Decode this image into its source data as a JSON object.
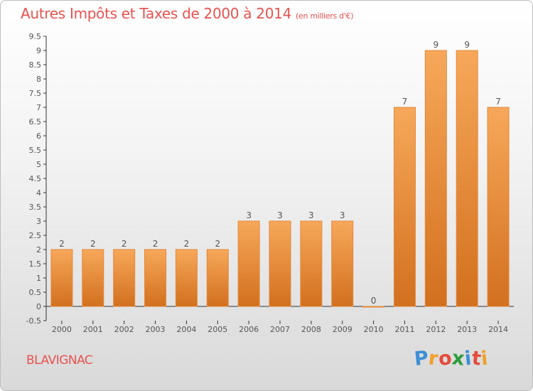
{
  "header": {
    "title": "Autres Impôts et Taxes de 2000 à 2014",
    "unit": "(en milliers d'€)"
  },
  "footer": {
    "commune": "BLAVIGNAC",
    "logo_letters": [
      "P",
      "r",
      "o",
      "x",
      "i",
      "t",
      "i"
    ],
    "logo_colors": [
      "#3d8fd6",
      "#f0a12a",
      "#e54b3c",
      "#2d9c3c",
      "#3d8fd6",
      "#e54b3c",
      "#f0a12a"
    ]
  },
  "chart_data": {
    "type": "bar",
    "categories": [
      "2000",
      "2001",
      "2002",
      "2003",
      "2004",
      "2005",
      "2006",
      "2007",
      "2008",
      "2009",
      "2010",
      "2011",
      "2012",
      "2013",
      "2014"
    ],
    "values": [
      2,
      2,
      2,
      2,
      2,
      2,
      3,
      3,
      3,
      3,
      0,
      7,
      9,
      9,
      7
    ],
    "data_labels": [
      "2",
      "2",
      "2",
      "2",
      "2",
      "2",
      "3",
      "3",
      "3",
      "3",
      "0",
      "7",
      "9",
      "9",
      "7"
    ],
    "ylim": [
      -0.5,
      9.5
    ],
    "yticks": [
      "-0.5",
      "0",
      "0.5",
      "1",
      "1.5",
      "2",
      "2.5",
      "3",
      "3.5",
      "4",
      "4.5",
      "5",
      "5.5",
      "6",
      "6.5",
      "7",
      "7.5",
      "8",
      "8.5",
      "9",
      "9.5"
    ],
    "grid": false,
    "colors": {
      "bar_light": "#f7a85a",
      "bar_dark": "#d2701e",
      "bar_stroke": "#e4873a",
      "label": "#555555",
      "axis": "#333333"
    }
  }
}
